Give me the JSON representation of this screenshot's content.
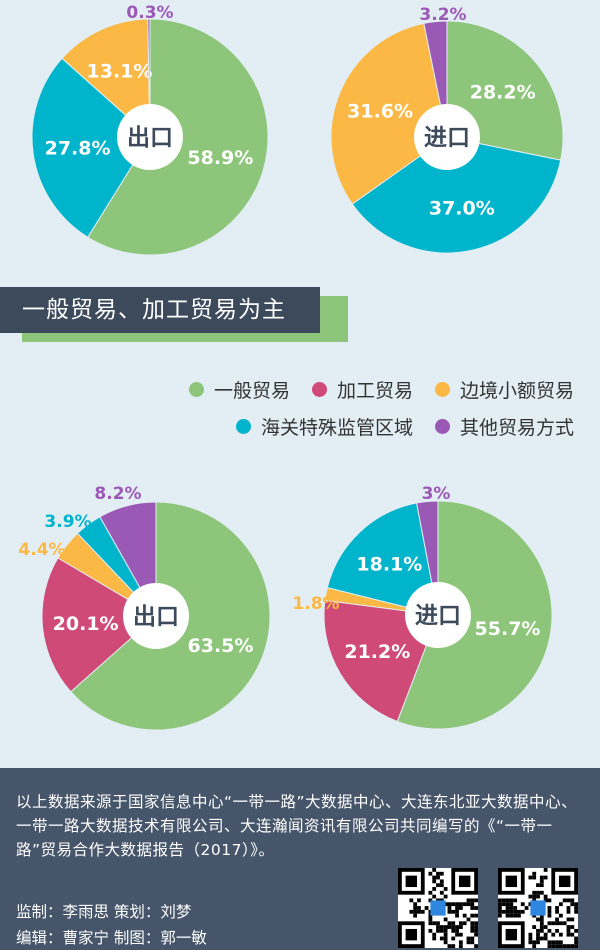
{
  "colors": {
    "general": "#8dc67a",
    "processing": "#d04a78",
    "border": "#fbb845",
    "customs": "#00b4cc",
    "other": "#9b59b6",
    "banner_bg": "#3d4a5c",
    "footer_bg": "#46556a",
    "page_bg": "#e3eef4"
  },
  "section_title": "一般贸易、加工贸易为主",
  "legend": [
    {
      "label": "一般贸易",
      "color": "#8dc67a"
    },
    {
      "label": "加工贸易",
      "color": "#d04a78"
    },
    {
      "label": "边境小额贸易",
      "color": "#fbb845"
    },
    {
      "label": "海关特殊监管区域",
      "color": "#00b4cc"
    },
    {
      "label": "其他贸易方式",
      "color": "#9b59b6"
    }
  ],
  "chart_data": [
    {
      "type": "pie",
      "center_label": "出口",
      "slices": [
        {
          "label": "58.9%",
          "value": 58.9,
          "color": "#8dc67a"
        },
        {
          "label": "27.8%",
          "value": 27.8,
          "color": "#00b4cc"
        },
        {
          "label": "13.1%",
          "value": 13.1,
          "color": "#fbb845"
        },
        {
          "label": "0.3%",
          "value": 0.3,
          "color": "#9b59b6"
        }
      ]
    },
    {
      "type": "pie",
      "center_label": "进口",
      "slices": [
        {
          "label": "28.2%",
          "value": 28.2,
          "color": "#8dc67a"
        },
        {
          "label": "37.0%",
          "value": 37.0,
          "color": "#00b4cc"
        },
        {
          "label": "31.6%",
          "value": 31.6,
          "color": "#fbb845"
        },
        {
          "label": "3.2%",
          "value": 3.2,
          "color": "#9b59b6"
        }
      ]
    },
    {
      "type": "pie",
      "center_label": "出口",
      "slices": [
        {
          "label": "63.5%",
          "value": 63.5,
          "color": "#8dc67a"
        },
        {
          "label": "20.1%",
          "value": 20.1,
          "color": "#d04a78"
        },
        {
          "label": "4.4%",
          "value": 4.4,
          "color": "#fbb845"
        },
        {
          "label": "3.9%",
          "value": 3.9,
          "color": "#00b4cc"
        },
        {
          "label": "8.2%",
          "value": 8.2,
          "color": "#9b59b6"
        }
      ]
    },
    {
      "type": "pie",
      "center_label": "进口",
      "slices": [
        {
          "label": "55.7%",
          "value": 55.7,
          "color": "#8dc67a"
        },
        {
          "label": "21.2%",
          "value": 21.2,
          "color": "#d04a78"
        },
        {
          "label": "1.8%",
          "value": 1.8,
          "color": "#fbb845"
        },
        {
          "label": "18.1%",
          "value": 18.1,
          "color": "#00b4cc"
        },
        {
          "label": "3%",
          "value": 3.0,
          "color": "#9b59b6"
        }
      ]
    }
  ],
  "footer": {
    "source_text": "以上数据来源于国家信息中心“一带一路”大数据中心、大连东北亚大数据中心、一带一路大数据技术有限公司、大连瀚闻资讯有限公司共同编写的《“一带一路”贸易合作大数据报告（2017）》。",
    "credit_line1": "监制：李雨思   策划：刘梦",
    "credit_line2": "编辑：曹家宁   制图：郭一敏"
  }
}
